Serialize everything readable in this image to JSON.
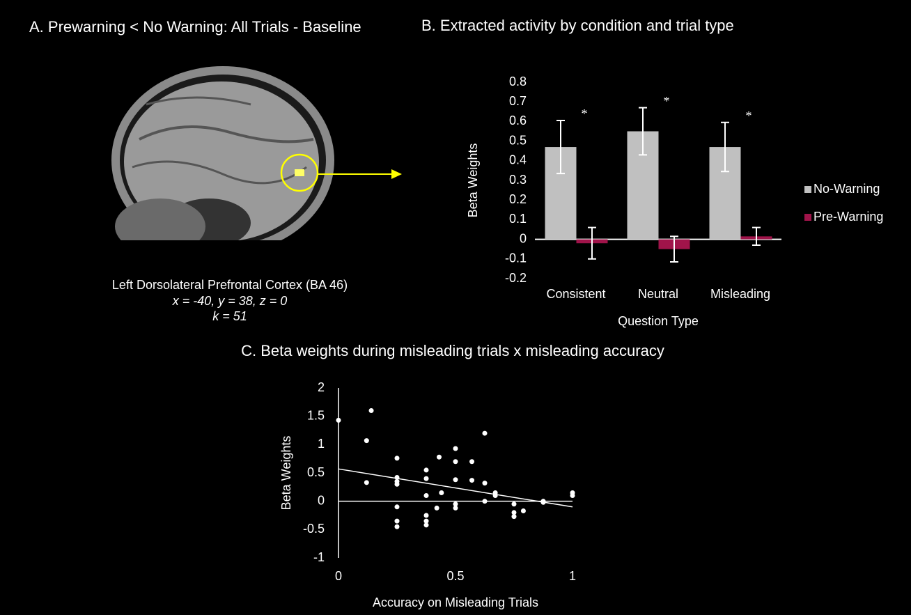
{
  "panel_a": {
    "title": "A. Prewarning  < No Warning: All Trials - Baseline",
    "region": "Left Dorsolateral Prefrontal Cortex (BA 46)",
    "coordinates": "x = -40, y = 38,  z = 0",
    "cluster_size": "k = 51"
  },
  "chart_data": [
    {
      "type": "bar",
      "title": "B. Extracted activity by condition and trial type",
      "x_label": "Question Type",
      "y_label": "Beta Weights",
      "categories": [
        "Consistent",
        "Neutral",
        "Misleading"
      ],
      "series": [
        {
          "name": "No-Warning",
          "color": "#c0c0c0",
          "values": [
            0.47,
            0.55,
            0.47
          ],
          "errors": [
            0.135,
            0.12,
            0.125
          ]
        },
        {
          "name": "Pre-Warning",
          "color": "#a0144a",
          "values": [
            -0.02,
            -0.05,
            0.015
          ],
          "errors": [
            0.08,
            0.065,
            0.045
          ]
        }
      ],
      "annotations": [
        "*",
        "*",
        "*"
      ],
      "ylim": [
        -0.2,
        0.8
      ],
      "yticks": [
        -0.2,
        -0.1,
        0,
        0.1,
        0.2,
        0.3,
        0.4,
        0.5,
        0.6,
        0.7,
        0.8
      ],
      "legend": "right"
    },
    {
      "type": "scatter",
      "title": "C. Beta weights during misleading trials x misleading accuracy",
      "x_label": "Accuracy on Misleading Trials",
      "y_label": "Beta Weights",
      "color": "#ffffff",
      "x": [
        0,
        0.12,
        0.14,
        0.12,
        0.25,
        0.25,
        0.25,
        0.25,
        0.25,
        0.25,
        0.25,
        0.375,
        0.375,
        0.375,
        0.375,
        0.375,
        0.375,
        0.42,
        0.43,
        0.44,
        0.5,
        0.5,
        0.5,
        0.5,
        0.5,
        0.57,
        0.57,
        0.625,
        0.625,
        0.625,
        0.67,
        0.67,
        0.75,
        0.75,
        0.75,
        0.79,
        0.875,
        0.875,
        1,
        1
      ],
      "values": [
        1.43,
        1.07,
        1.6,
        0.33,
        0.76,
        0.42,
        0.35,
        0.3,
        -0.1,
        -0.35,
        -0.45,
        0.55,
        0.4,
        0.1,
        -0.25,
        -0.35,
        -0.42,
        -0.12,
        0.78,
        0.15,
        0.93,
        0.7,
        0.38,
        -0.05,
        -0.12,
        0.7,
        0.37,
        1.2,
        0.32,
        0,
        0.15,
        0.1,
        -0.05,
        -0.2,
        -0.27,
        -0.17,
        0,
        -0.02,
        0.15,
        0.1
      ],
      "trendline": {
        "x": [
          0,
          1
        ],
        "y": [
          0.57,
          -0.1
        ]
      },
      "xlim": [
        0,
        1
      ],
      "xticks": [
        0,
        0.5,
        1
      ],
      "ylim": [
        -1,
        2
      ],
      "yticks": [
        -1,
        -0.5,
        0,
        0.5,
        1,
        1.5,
        2
      ]
    }
  ]
}
